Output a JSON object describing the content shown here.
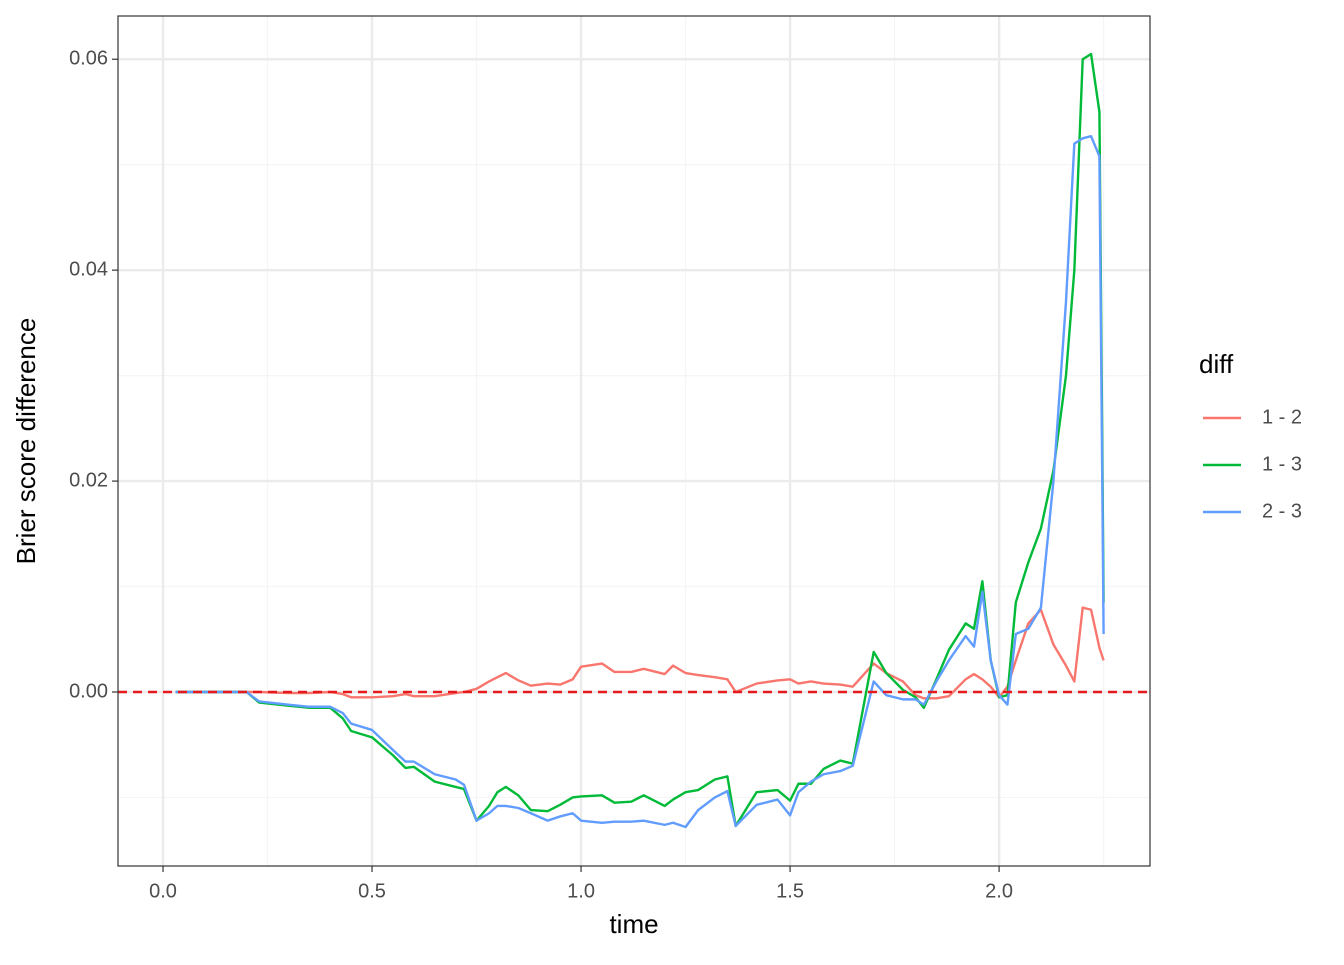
{
  "chart_data": {
    "type": "line",
    "x_label": "time",
    "y_label": "Brier score difference",
    "legend_title": "diff",
    "legend_position": "right",
    "xlim": [
      -0.1077,
      2.361
    ],
    "ylim": [
      -0.0165,
      0.0641
    ],
    "xticks": [
      {
        "value": 0,
        "label": "0.0"
      },
      0.5,
      {
        "value": 1,
        "label": "1.0"
      },
      1.5,
      {
        "value": 2,
        "label": "2.0"
      }
    ],
    "yticks": [
      {
        "value": 0,
        "label": "0.00"
      },
      {
        "value": 0.02,
        "label": "0.02"
      },
      {
        "value": 0.04,
        "label": "0.04"
      },
      {
        "value": 0.06,
        "label": "0.06"
      }
    ],
    "x_minor_ticks": [
      0.25,
      0.75,
      1.25,
      1.75,
      2.25
    ],
    "y_minor_ticks": [
      -0.01,
      0.01,
      0.03,
      0.05
    ],
    "grid": true,
    "hline": {
      "value": 0,
      "color": "#e41a1c",
      "dashed": true
    },
    "x": [
      0.03,
      0.1,
      0.2,
      0.23,
      0.3,
      0.35,
      0.4,
      0.43,
      0.45,
      0.5,
      0.55,
      0.58,
      0.6,
      0.65,
      0.7,
      0.72,
      0.75,
      0.78,
      0.8,
      0.82,
      0.85,
      0.88,
      0.92,
      0.95,
      0.98,
      1.0,
      1.05,
      1.08,
      1.12,
      1.15,
      1.2,
      1.22,
      1.25,
      1.28,
      1.32,
      1.35,
      1.37,
      1.42,
      1.47,
      1.5,
      1.52,
      1.55,
      1.58,
      1.62,
      1.65,
      1.7,
      1.73,
      1.77,
      1.8,
      1.82,
      1.85,
      1.88,
      1.92,
      1.94,
      1.96,
      1.98,
      2.0,
      2.02,
      2.04,
      2.07,
      2.1,
      2.13,
      2.16,
      2.18,
      2.2,
      2.22,
      2.24,
      2.25
    ],
    "series": [
      {
        "name": "1 - 2",
        "color": "#F8766D",
        "values": [
          0,
          0,
          0,
          0,
          -0.0001,
          -0.0001,
          0,
          -0.0002,
          -0.0005,
          -0.0005,
          -0.0004,
          -0.0002,
          -0.0004,
          -0.0004,
          -0.0001,
          0,
          0.0003,
          0.001,
          0.0014,
          0.0018,
          0.0011,
          0.0006,
          0.0008,
          0.0007,
          0.0012,
          0.0024,
          0.0027,
          0.0019,
          0.0019,
          0.0022,
          0.0017,
          0.0025,
          0.0018,
          0.0016,
          0.0014,
          0.0012,
          0,
          0.0008,
          0.0011,
          0.0012,
          0.0008,
          0.001,
          0.0008,
          0.0007,
          0.0005,
          0.0027,
          0.0018,
          0.001,
          -0.0003,
          -0.0006,
          -0.0006,
          -0.0004,
          0.0012,
          0.0017,
          0.0012,
          0.0005,
          -0.0005,
          0.0005,
          0.003,
          0.0065,
          0.0078,
          0.0045,
          0.0025,
          0.001,
          0.008,
          0.0078,
          0.0042,
          0.003
        ]
      },
      {
        "name": "1 - 3",
        "color": "#00BA38",
        "values": [
          0,
          0,
          0,
          -0.001,
          -0.0013,
          -0.0015,
          -0.0015,
          -0.0025,
          -0.0037,
          -0.0043,
          -0.006,
          -0.0072,
          -0.0071,
          -0.0085,
          -0.009,
          -0.0092,
          -0.0122,
          -0.0108,
          -0.0095,
          -0.009,
          -0.0098,
          -0.0112,
          -0.0113,
          -0.0107,
          -0.01,
          -0.0099,
          -0.0098,
          -0.0105,
          -0.0104,
          -0.0098,
          -0.0108,
          -0.0102,
          -0.0095,
          -0.0093,
          -0.0083,
          -0.008,
          -0.0127,
          -0.0095,
          -0.0093,
          -0.0103,
          -0.0087,
          -0.0087,
          -0.0073,
          -0.0065,
          -0.0068,
          0.0038,
          0.0018,
          0.0002,
          -0.0005,
          -0.0015,
          0.0012,
          0.004,
          0.0065,
          0.006,
          0.0105,
          0.003,
          -0.0005,
          -0.0003,
          0.0085,
          0.0123,
          0.0155,
          0.021,
          0.03,
          0.04,
          0.06,
          0.0605,
          0.055,
          0.0085
        ]
      },
      {
        "name": "2 - 3",
        "color": "#619CFF",
        "values": [
          0,
          0,
          0,
          -0.0009,
          -0.0012,
          -0.0014,
          -0.0014,
          -0.002,
          -0.003,
          -0.0036,
          -0.0055,
          -0.0066,
          -0.0066,
          -0.0078,
          -0.0083,
          -0.0088,
          -0.0122,
          -0.0115,
          -0.0108,
          -0.0108,
          -0.011,
          -0.0115,
          -0.0122,
          -0.0118,
          -0.0115,
          -0.0122,
          -0.0124,
          -0.0123,
          -0.0123,
          -0.0122,
          -0.0126,
          -0.0124,
          -0.0128,
          -0.0112,
          -0.01,
          -0.0094,
          -0.0127,
          -0.0107,
          -0.0102,
          -0.0117,
          -0.0095,
          -0.0085,
          -0.0078,
          -0.0075,
          -0.007,
          0.001,
          -0.0003,
          -0.0007,
          -0.0007,
          -0.0012,
          0.001,
          0.003,
          0.0053,
          0.0043,
          0.0095,
          0.003,
          -0.0003,
          -0.0012,
          0.0055,
          0.006,
          0.008,
          0.02,
          0.037,
          0.052,
          0.0525,
          0.0527,
          0.0508,
          0.0055
        ]
      }
    ]
  }
}
